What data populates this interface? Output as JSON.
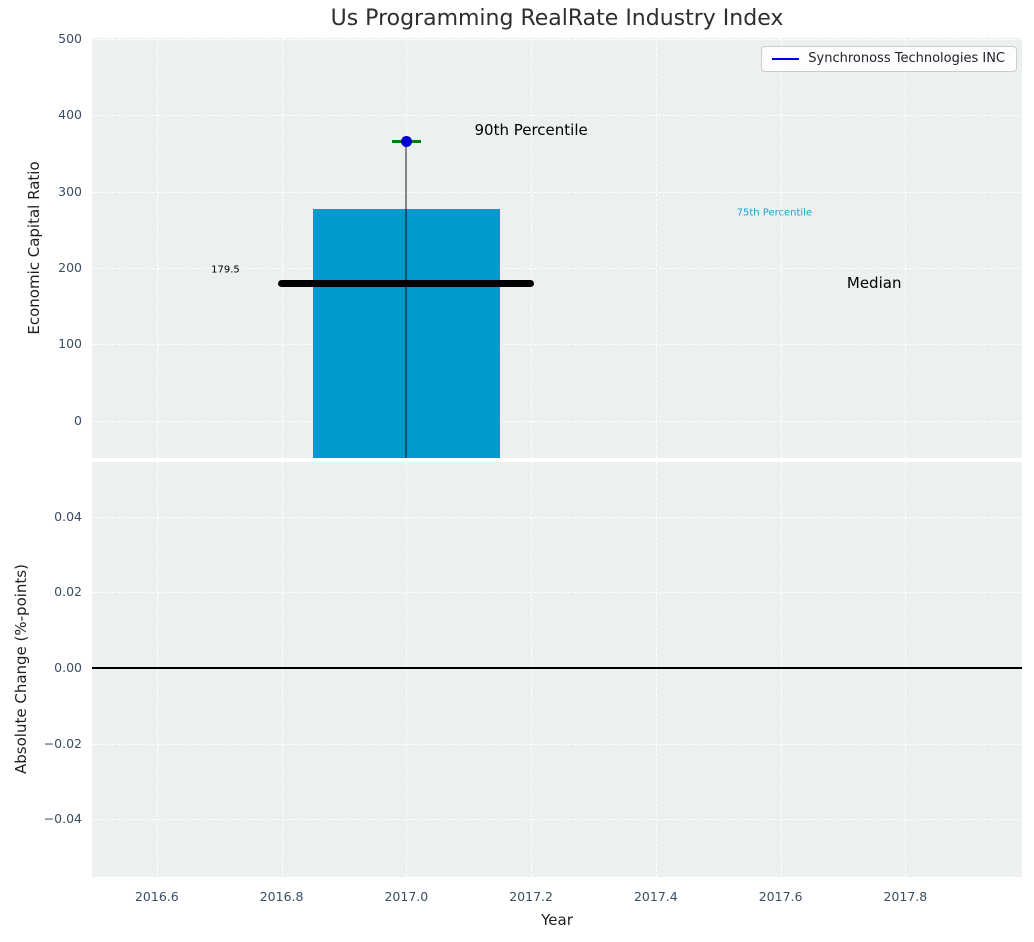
{
  "figure": {
    "background": "#ffffff",
    "plot_background": "#ecf0f1",
    "grid_color": "#ffffff",
    "tick_label_color": "#3a4e63"
  },
  "chart_data": [
    {
      "type": "bar",
      "title": "Us Programming RealRate Industry Index",
      "ylabel": "Economic Capital Ratio",
      "xlim": [
        2016.496,
        2017.987
      ],
      "ylim": [
        -48.5,
        501
      ],
      "yticks": [
        0,
        100,
        200,
        300,
        400,
        500
      ],
      "yticklabels": [
        "0",
        "100",
        "200",
        "300",
        "400",
        "500"
      ],
      "xticks": [
        2016.6,
        2016.8,
        2017.0,
        2017.2,
        2017.4,
        2017.6,
        2017.8
      ],
      "grid": true,
      "legend": {
        "label": "Synchronoss Technologies INC",
        "line_color": "#0000e0",
        "position": "upper right"
      },
      "bar": {
        "x": 2017.0,
        "width": 0.3,
        "top": 277,
        "bottom_clipped": true,
        "color": "#009acd",
        "meaning": "75th Percentile"
      },
      "median": {
        "value": 179.5,
        "x_from": 2016.795,
        "x_to": 2017.205,
        "color": "#000000"
      },
      "p90": {
        "value": 366,
        "x": 2017.0,
        "dot_color": "#0000d0",
        "cap_color": "#008000",
        "cap_halfwidth": 0.023
      },
      "whisker": {
        "from": 366,
        "to_clipped_bottom": true,
        "color": "rgba(0,0,0,0.45)"
      },
      "annotations": [
        {
          "text": "90th Percentile",
          "x": 2017.2,
          "y": 381,
          "color": "#000000",
          "size": 15
        },
        {
          "text": "75th Percentile",
          "x": 2017.59,
          "y": 272,
          "color": "#22a0d2",
          "size": 10
        },
        {
          "text": "Median",
          "x": 2017.75,
          "y": 180,
          "color": "#000000",
          "size": 15
        },
        {
          "text": "179.5",
          "x": 2016.71,
          "y": 198,
          "color": "#000000",
          "size": 10
        }
      ]
    },
    {
      "type": "line",
      "ylabel": "Absolute Change (%-points)",
      "xlabel": "Year",
      "xlim": [
        2016.496,
        2017.987
      ],
      "ylim": [
        -0.0553,
        0.0545
      ],
      "yticks": [
        0.04,
        0.02,
        0.0,
        -0.02,
        -0.04
      ],
      "yticklabels": [
        "0.04",
        "0.02",
        "0.00",
        "−0.02",
        "−0.04"
      ],
      "xticks": [
        2016.6,
        2016.8,
        2017.0,
        2017.2,
        2017.4,
        2017.6,
        2017.8
      ],
      "xticklabels": [
        "2016.6",
        "2016.8",
        "2017.0",
        "2017.2",
        "2017.4",
        "2017.6",
        "2017.8"
      ],
      "grid": true,
      "zero_line": {
        "y": 0.0,
        "color": "#000000"
      },
      "series": []
    }
  ]
}
